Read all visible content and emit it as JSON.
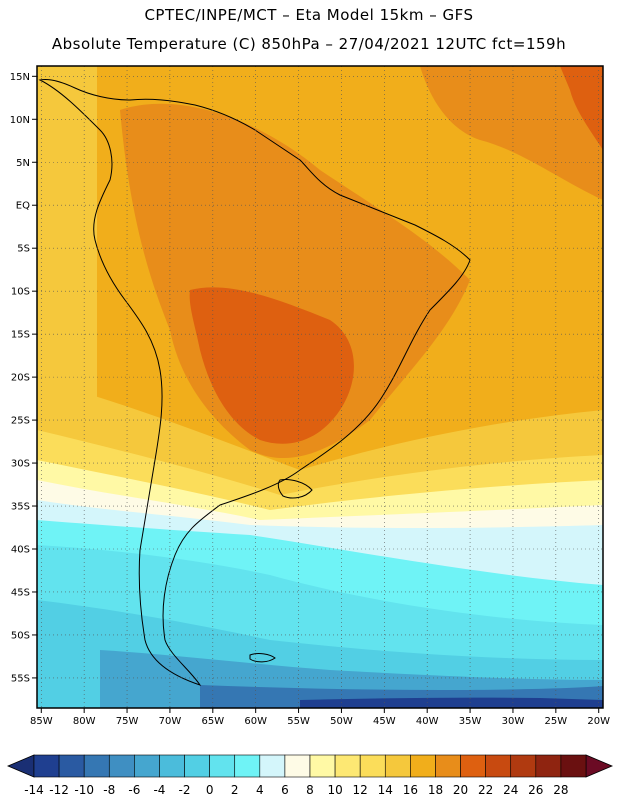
{
  "header": {
    "title_line1": "CPTEC/INPE/MCT –  Eta Model 15km – GFS",
    "title_line2": "Absolute Temperature (C) 850hPa – 27/04/2021 12UTC fct=159h"
  },
  "map": {
    "lat_labels": [
      "15N",
      "10N",
      "5N",
      "EQ",
      "5S",
      "10S",
      "15S",
      "20S",
      "25S",
      "30S",
      "35S",
      "40S",
      "45S",
      "50S",
      "55S"
    ],
    "lon_labels": [
      "85W",
      "80W",
      "75W",
      "70W",
      "65W",
      "60W",
      "55W",
      "50W",
      "45W",
      "40W",
      "35W",
      "30W",
      "25W",
      "20W"
    ]
  },
  "colorbar": {
    "ticks": [
      "-14",
      "-12",
      "-10",
      "-8",
      "-6",
      "-4",
      "-2",
      "0",
      "2",
      "4",
      "6",
      "8",
      "10",
      "12",
      "14",
      "16",
      "18",
      "20",
      "22",
      "24",
      "26",
      "28"
    ],
    "colors": [
      "#1f3f90",
      "#2a5aa2",
      "#3577b3",
      "#3f8fc2",
      "#45a6cf",
      "#4bbcdb",
      "#52cfe4",
      "#62e3ee",
      "#6ff3f6",
      "#d4f6fb",
      "#fefbe6",
      "#fff9a5",
      "#fde873",
      "#fbdd5a",
      "#f5c83c",
      "#f1ae1b",
      "#e88d1a",
      "#de6010",
      "#c84a10",
      "#b03a10",
      "#8f2410",
      "#6a1010"
    ],
    "low_end_color": "#1a2f74",
    "high_end_color": "#6b0b24"
  }
}
